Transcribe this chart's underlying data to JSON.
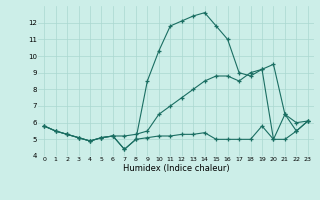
{
  "xlabel": "Humidex (Indice chaleur)",
  "bg_color": "#cceee8",
  "grid_color": "#aad8d0",
  "line_color": "#1a6e62",
  "xlim": [
    -0.5,
    23.5
  ],
  "ylim": [
    4,
    13
  ],
  "yticks": [
    4,
    5,
    6,
    7,
    8,
    9,
    10,
    11,
    12
  ],
  "xticks": [
    0,
    1,
    2,
    3,
    4,
    5,
    6,
    7,
    8,
    9,
    10,
    11,
    12,
    13,
    14,
    15,
    16,
    17,
    18,
    19,
    20,
    21,
    22,
    23
  ],
  "line1_x": [
    0,
    1,
    2,
    3,
    4,
    5,
    6,
    7,
    8,
    9,
    10,
    11,
    12,
    13,
    14,
    15,
    16,
    17,
    18,
    19,
    20,
    21,
    22,
    23
  ],
  "line1_y": [
    5.8,
    5.5,
    5.3,
    5.1,
    4.9,
    5.1,
    5.2,
    4.4,
    5.0,
    5.1,
    5.2,
    5.2,
    5.3,
    5.3,
    5.4,
    5.0,
    5.0,
    5.0,
    5.0,
    5.8,
    5.0,
    5.0,
    5.5,
    6.1
  ],
  "line2_x": [
    0,
    1,
    2,
    3,
    4,
    5,
    6,
    7,
    8,
    9,
    10,
    11,
    12,
    13,
    14,
    15,
    16,
    17,
    18,
    19,
    20,
    21,
    22,
    23
  ],
  "line2_y": [
    5.8,
    5.5,
    5.3,
    5.1,
    4.9,
    5.1,
    5.2,
    5.2,
    5.3,
    5.5,
    6.5,
    7.0,
    7.5,
    8.0,
    8.5,
    8.8,
    8.8,
    8.5,
    9.0,
    9.2,
    9.5,
    6.5,
    6.0,
    6.1
  ],
  "line3_x": [
    0,
    1,
    2,
    3,
    4,
    5,
    6,
    7,
    8,
    9,
    10,
    11,
    12,
    13,
    14,
    15,
    16,
    17,
    18,
    19,
    20,
    21,
    22,
    23
  ],
  "line3_y": [
    5.8,
    5.5,
    5.3,
    5.1,
    4.9,
    5.1,
    5.2,
    4.4,
    5.0,
    8.5,
    10.3,
    11.8,
    12.1,
    12.4,
    12.6,
    11.8,
    11.0,
    9.0,
    8.8,
    9.2,
    5.0,
    6.5,
    5.5,
    6.1
  ]
}
